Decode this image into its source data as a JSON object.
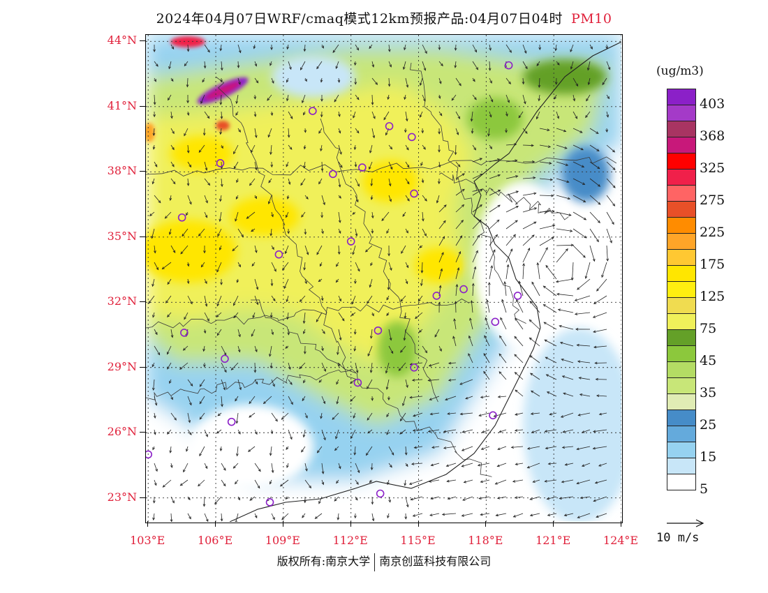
{
  "title": {
    "text": "2024年04月07日WRF/cmaq模式12km预报产品:04月07日04时",
    "product": "PM10"
  },
  "map": {
    "lat_labels": [
      "44°N",
      "41°N",
      "38°N",
      "35°N",
      "32°N",
      "29°N",
      "26°N",
      "23°N"
    ],
    "lon_labels": [
      "103°E",
      "106°E",
      "109°E",
      "112°E",
      "115°E",
      "118°E",
      "121°E",
      "124°E"
    ],
    "lat_values": [
      44,
      41,
      38,
      35,
      32,
      29,
      26,
      23
    ],
    "lon_values": [
      103,
      106,
      109,
      112,
      115,
      118,
      121,
      124
    ],
    "extent": {
      "lon_min": 102.9,
      "lon_max": 124.0,
      "lat_min": 21.9,
      "lat_max": 44.3
    },
    "city_markers": [
      {
        "lon": 119.0,
        "lat": 42.9
      },
      {
        "lon": 110.3,
        "lat": 40.8
      },
      {
        "lon": 113.7,
        "lat": 40.1
      },
      {
        "lon": 114.7,
        "lat": 39.6
      },
      {
        "lon": 112.5,
        "lat": 38.2
      },
      {
        "lon": 106.2,
        "lat": 38.4
      },
      {
        "lon": 111.2,
        "lat": 37.9
      },
      {
        "lon": 114.8,
        "lat": 37.0
      },
      {
        "lon": 104.5,
        "lat": 35.9
      },
      {
        "lon": 112.0,
        "lat": 34.8
      },
      {
        "lon": 108.8,
        "lat": 34.2
      },
      {
        "lon": 115.8,
        "lat": 32.3
      },
      {
        "lon": 117.0,
        "lat": 32.6
      },
      {
        "lon": 119.4,
        "lat": 32.3
      },
      {
        "lon": 104.6,
        "lat": 30.6
      },
      {
        "lon": 113.2,
        "lat": 30.7
      },
      {
        "lon": 118.4,
        "lat": 31.1
      },
      {
        "lon": 106.4,
        "lat": 29.4
      },
      {
        "lon": 114.8,
        "lat": 29.0
      },
      {
        "lon": 112.3,
        "lat": 28.3
      },
      {
        "lon": 106.7,
        "lat": 26.5
      },
      {
        "lon": 118.3,
        "lat": 26.8
      },
      {
        "lon": 103.0,
        "lat": 25.0
      },
      {
        "lon": 113.3,
        "lat": 23.2
      },
      {
        "lon": 108.4,
        "lat": 22.8
      }
    ]
  },
  "legend": {
    "unit": "(ug/m3)",
    "labels": [
      "403",
      "368",
      "325",
      "275",
      "225",
      "175",
      "125",
      "75",
      "45",
      "35",
      "25",
      "15",
      "5"
    ],
    "colors": [
      "#8b20c8",
      "#a43ac8",
      "#a83462",
      "#c8187a",
      "#ff0000",
      "#f0204a",
      "#ff6464",
      "#e85028",
      "#ff8c00",
      "#ffa528",
      "#ffc832",
      "#ffe600",
      "#ffee10",
      "#f0dc50",
      "#f0f05a",
      "#64a028",
      "#8cc83c",
      "#b4dc64",
      "#c8e678",
      "#e0ecb4",
      "#468cc8",
      "#64aadc",
      "#96d2f0",
      "#c8e6f8",
      "#ffffff"
    ]
  },
  "vector_ref": {
    "label": "10 m/s"
  },
  "copyright": {
    "left": "版权所有:南京大学",
    "right": "南京创蓝科技有限公司"
  },
  "colors": {
    "accent": "#e0203a",
    "marker": "#8b20c8"
  }
}
